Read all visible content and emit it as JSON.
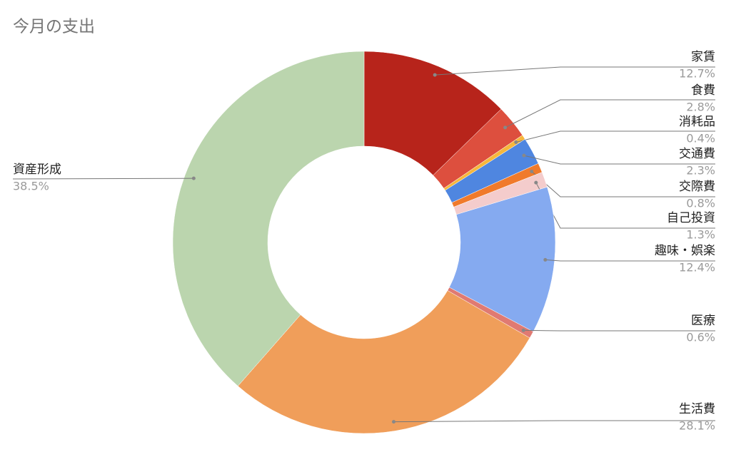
{
  "chart_data": {
    "type": "pie",
    "donut": true,
    "title": "今月の支出",
    "categories": [
      "家賃",
      "食費",
      "消耗品",
      "交通費",
      "交際費",
      "自己投資",
      "趣味・娯楽",
      "医療",
      "生活費",
      "資産形成"
    ],
    "values": [
      12.7,
      2.8,
      0.4,
      2.3,
      0.8,
      1.3,
      12.4,
      0.6,
      28.1,
      38.5
    ],
    "value_labels": [
      "12.7%",
      "2.8%",
      "0.4%",
      "2.3%",
      "0.8%",
      "1.3%",
      "12.4%",
      "0.6%",
      "28.1%",
      "38.5%"
    ],
    "colors": [
      "#b7241b",
      "#dd4f3e",
      "#f6b73c",
      "#4f86e0",
      "#f07a2b",
      "#f4cccc",
      "#85aaf0",
      "#e07a72",
      "#f09e5a",
      "#bbd5ae"
    ]
  }
}
